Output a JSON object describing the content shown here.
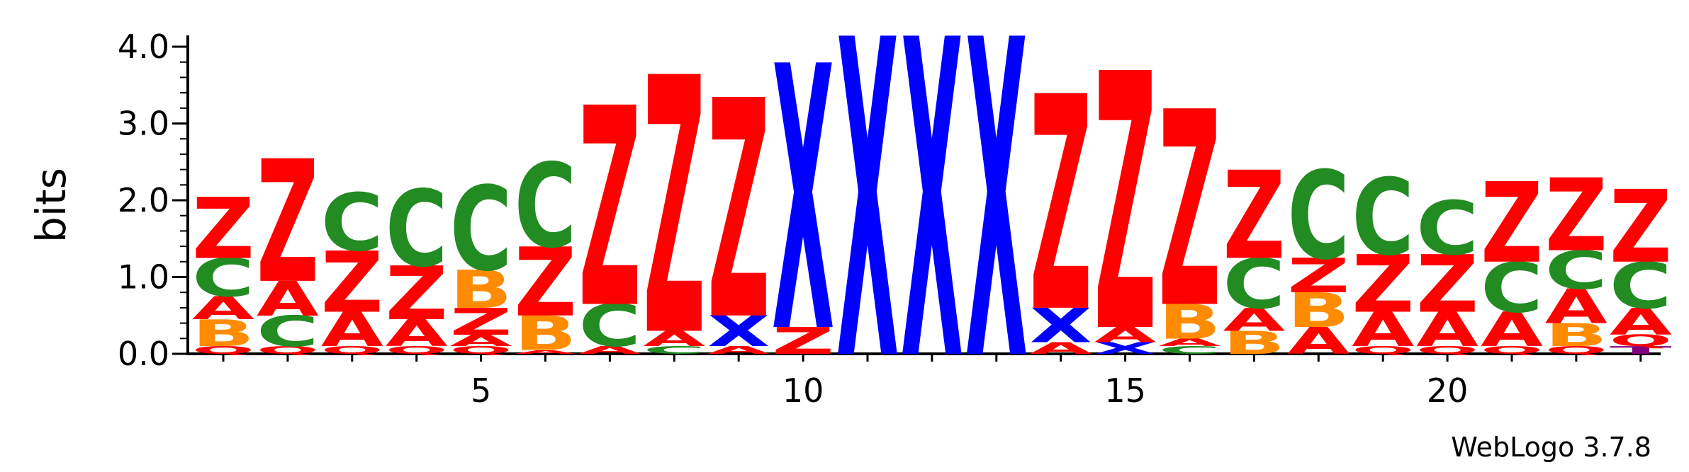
{
  "chart_data": {
    "type": "sequence-logo",
    "ylabel": "bits",
    "ylim": [
      0,
      4
    ],
    "y_ticks": [
      {
        "value": 0,
        "label": "0.0"
      },
      {
        "value": 1,
        "label": "1.0"
      },
      {
        "value": 2,
        "label": "2.0"
      },
      {
        "value": 3,
        "label": "3.0"
      },
      {
        "value": 4,
        "label": "4.0"
      }
    ],
    "x_tick_labels": [
      {
        "position": 5,
        "label": "5"
      },
      {
        "position": 10,
        "label": "10"
      },
      {
        "position": 15,
        "label": "15"
      },
      {
        "position": 20,
        "label": "20"
      }
    ],
    "positions": 23,
    "colors": {
      "Z": "#ff0000",
      "A": "#ff0000",
      "Q": "#ff0000",
      "C": "#228b22",
      "B": "#ff8c00",
      "X": "#0000ff",
      "T": "#800080"
    },
    "stacks": [
      {
        "position": 1,
        "letters": [
          {
            "l": "Q",
            "h": 0.1
          },
          {
            "l": "B",
            "h": 0.35
          },
          {
            "l": "A",
            "h": 0.3
          },
          {
            "l": "C",
            "h": 0.5
          },
          {
            "l": "Z",
            "h": 0.8
          }
        ]
      },
      {
        "position": 2,
        "letters": [
          {
            "l": "Q",
            "h": 0.1
          },
          {
            "l": "C",
            "h": 0.4
          },
          {
            "l": "A",
            "h": 0.45
          },
          {
            "l": "Z",
            "h": 1.6
          }
        ]
      },
      {
        "position": 3,
        "letters": [
          {
            "l": "Q",
            "h": 0.1
          },
          {
            "l": "A",
            "h": 0.45
          },
          {
            "l": "Z",
            "h": 0.8
          },
          {
            "l": "C",
            "h": 0.75
          }
        ]
      },
      {
        "position": 4,
        "letters": [
          {
            "l": "Q",
            "h": 0.1
          },
          {
            "l": "A",
            "h": 0.35
          },
          {
            "l": "Z",
            "h": 0.7
          },
          {
            "l": "C",
            "h": 1.0
          }
        ]
      },
      {
        "position": 5,
        "letters": [
          {
            "l": "Q",
            "h": 0.1
          },
          {
            "l": "A",
            "h": 0.15
          },
          {
            "l": "Z",
            "h": 0.35
          },
          {
            "l": "B",
            "h": 0.5
          },
          {
            "l": "C",
            "h": 1.1
          }
        ]
      },
      {
        "position": 6,
        "letters": [
          {
            "l": "A",
            "h": 0.05
          },
          {
            "l": "B",
            "h": 0.45
          },
          {
            "l": "Z",
            "h": 0.9
          },
          {
            "l": "C",
            "h": 1.1
          }
        ]
      },
      {
        "position": 7,
        "letters": [
          {
            "l": "A",
            "h": 0.1
          },
          {
            "l": "C",
            "h": 0.55
          },
          {
            "l": "Z",
            "h": 2.6
          }
        ]
      },
      {
        "position": 8,
        "letters": [
          {
            "l": "C",
            "h": 0.1
          },
          {
            "l": "A",
            "h": 0.2
          },
          {
            "l": "Z",
            "h": 3.35
          }
        ]
      },
      {
        "position": 9,
        "letters": [
          {
            "l": "A",
            "h": 0.1
          },
          {
            "l": "X",
            "h": 0.4
          },
          {
            "l": "Z",
            "h": 2.85
          }
        ]
      },
      {
        "position": 10,
        "letters": [
          {
            "l": "Z",
            "h": 0.35
          },
          {
            "l": "X",
            "h": 3.45
          }
        ]
      },
      {
        "position": 11,
        "letters": [
          {
            "l": "X",
            "h": 4.15
          }
        ]
      },
      {
        "position": 12,
        "letters": [
          {
            "l": "X",
            "h": 4.15
          }
        ]
      },
      {
        "position": 13,
        "letters": [
          {
            "l": "X",
            "h": 4.15
          }
        ]
      },
      {
        "position": 14,
        "letters": [
          {
            "l": "A",
            "h": 0.15
          },
          {
            "l": "X",
            "h": 0.45
          },
          {
            "l": "Z",
            "h": 2.8
          }
        ]
      },
      {
        "position": 15,
        "letters": [
          {
            "l": "X",
            "h": 0.15
          },
          {
            "l": "A",
            "h": 0.2
          },
          {
            "l": "Z",
            "h": 3.35
          }
        ]
      },
      {
        "position": 16,
        "letters": [
          {
            "l": "C",
            "h": 0.1
          },
          {
            "l": "A",
            "h": 0.1
          },
          {
            "l": "B",
            "h": 0.45
          },
          {
            "l": "Z",
            "h": 2.55
          }
        ]
      },
      {
        "position": 17,
        "letters": [
          {
            "l": "B",
            "h": 0.3
          },
          {
            "l": "A",
            "h": 0.3
          },
          {
            "l": "C",
            "h": 0.65
          },
          {
            "l": "Z",
            "h": 1.15
          }
        ]
      },
      {
        "position": 18,
        "letters": [
          {
            "l": "A",
            "h": 0.35
          },
          {
            "l": "B",
            "h": 0.45
          },
          {
            "l": "Z",
            "h": 0.45
          },
          {
            "l": "C",
            "h": 1.15
          }
        ]
      },
      {
        "position": 19,
        "letters": [
          {
            "l": "Q",
            "h": 0.1
          },
          {
            "l": "A",
            "h": 0.45
          },
          {
            "l": "Z",
            "h": 0.75
          },
          {
            "l": "C",
            "h": 1.0
          }
        ]
      },
      {
        "position": 20,
        "letters": [
          {
            "l": "Q",
            "h": 0.1
          },
          {
            "l": "A",
            "h": 0.45
          },
          {
            "l": "Z",
            "h": 0.75
          },
          {
            "l": "C",
            "h": 0.7
          }
        ]
      },
      {
        "position": 21,
        "letters": [
          {
            "l": "Q",
            "h": 0.1
          },
          {
            "l": "A",
            "h": 0.45
          },
          {
            "l": "C",
            "h": 0.65
          },
          {
            "l": "Z",
            "h": 1.05
          }
        ]
      },
      {
        "position": 22,
        "letters": [
          {
            "l": "Q",
            "h": 0.1
          },
          {
            "l": "B",
            "h": 0.3
          },
          {
            "l": "A",
            "h": 0.45
          },
          {
            "l": "C",
            "h": 0.5
          },
          {
            "l": "Z",
            "h": 0.95
          }
        ]
      },
      {
        "position": 23,
        "letters": [
          {
            "l": "T",
            "h": 0.1
          },
          {
            "l": "Q",
            "h": 0.15
          },
          {
            "l": "A",
            "h": 0.35
          },
          {
            "l": "C",
            "h": 0.6
          },
          {
            "l": "Z",
            "h": 0.95
          }
        ]
      }
    ]
  },
  "credit": "WebLogo 3.7.8"
}
